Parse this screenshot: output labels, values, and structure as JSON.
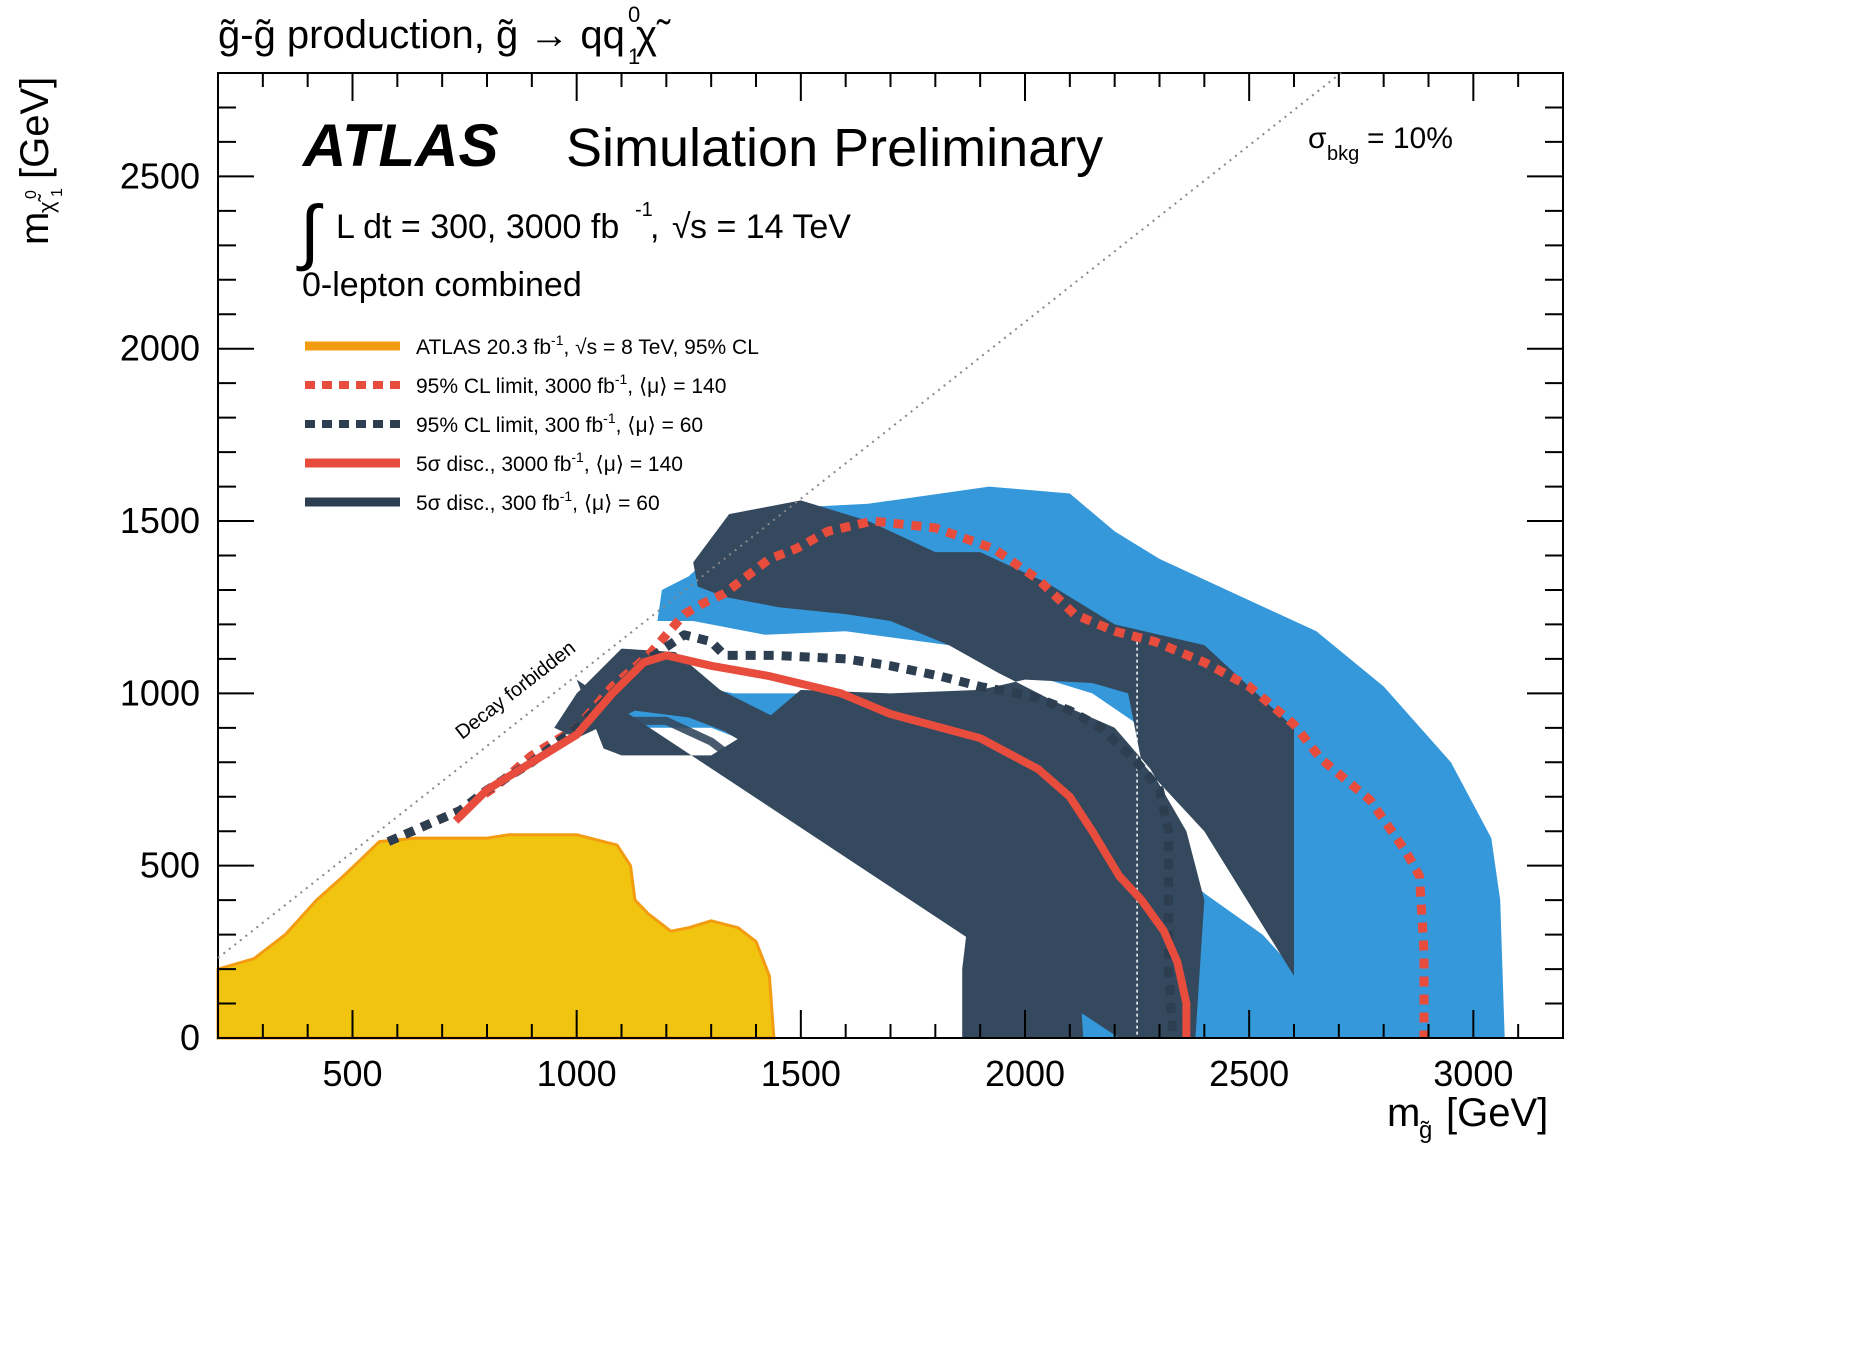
{
  "figure_title": "g̃-g̃ production, g̃ → qq χ̃",
  "figure_title_sup": "0",
  "figure_title_sub": "1",
  "experiment": "ATLAS",
  "status": "Simulation Preliminary",
  "lumi_text": "L dt = 300, 3000 fb",
  "lumi_sup": "-1",
  "energy_text": "s = 14 TeV",
  "channel": "0-lepton combined",
  "sigma_bkg_symbol": "σ",
  "sigma_bkg_sub": "bkg",
  "sigma_bkg_value": " = 10%",
  "diagonal_label": "Decay forbidden",
  "legend": [
    {
      "text": "ATLAS 20.3 fb",
      "sup": "-1",
      "rest": ", √s = 8 TeV, 95% CL",
      "color": "#F39C12",
      "style": "solid"
    },
    {
      "text": "95% CL limit, 3000 fb",
      "sup": "-1",
      "rest": ", ⟨μ⟩ = 140",
      "color": "#E74C3C",
      "style": "dotted"
    },
    {
      "text": "95% CL limit, 300 fb",
      "sup": "-1",
      "rest": ", ⟨μ⟩ = 60",
      "color": "#2C3E50",
      "style": "dotted"
    },
    {
      "text": "5σ disc., 3000 fb",
      "sup": "-1",
      "rest": ", ⟨μ⟩ = 140",
      "color": "#E74C3C",
      "style": "solid"
    },
    {
      "text": "5σ disc., 300 fb",
      "sup": "-1",
      "rest": ", ⟨μ⟩ = 60",
      "color": "#2C3E50",
      "style": "solid"
    }
  ],
  "chart_data": {
    "type": "area",
    "xlabel": "m",
    "xlabel_sub": "g̃",
    "xlabel_unit": "[GeV]",
    "ylabel": "m",
    "ylabel_sub": "χ̃",
    "ylabel_sub2": "0",
    "ylabel_sub3": "1",
    "ylabel_unit": "[GeV]",
    "xlim": [
      200,
      3200
    ],
    "ylim": [
      0,
      2800
    ],
    "x_ticks": [
      500,
      1000,
      1500,
      2000,
      2500,
      3000
    ],
    "y_ticks": [
      0,
      500,
      1000,
      1500,
      2000,
      2500
    ],
    "colors": {
      "light_blue": "#3498DB",
      "dark_blue": "#34495E",
      "orange_fill": "#F1C40F",
      "orange_line": "#F39C12",
      "red": "#E74C3C",
      "navy": "#2C3E50",
      "diagonal": "#888888"
    },
    "series": [
      {
        "name": "ATLAS 20.3 fb-1, √s = 8 TeV, 95% CL",
        "kind": "filled-region",
        "points": [
          [
            200,
            0
          ],
          [
            200,
            200
          ],
          [
            280,
            230
          ],
          [
            350,
            300
          ],
          [
            420,
            400
          ],
          [
            480,
            470
          ],
          [
            520,
            520
          ],
          [
            560,
            570
          ],
          [
            640,
            580
          ],
          [
            800,
            580
          ],
          [
            850,
            590
          ],
          [
            1000,
            590
          ],
          [
            1090,
            560
          ],
          [
            1120,
            500
          ],
          [
            1130,
            400
          ],
          [
            1160,
            360
          ],
          [
            1210,
            310
          ],
          [
            1250,
            320
          ],
          [
            1300,
            340
          ],
          [
            1360,
            320
          ],
          [
            1400,
            280
          ],
          [
            1430,
            180
          ],
          [
            1440,
            0
          ]
        ]
      },
      {
        "name": "5σ disc., 300 fb-1, ⟨μ⟩ = 60 band",
        "kind": "band",
        "points": [
          [
            1860,
            0
          ],
          [
            2130,
            0
          ],
          [
            2120,
            200
          ],
          [
            2060,
            400
          ],
          [
            1980,
            570
          ],
          [
            1880,
            650
          ],
          [
            1700,
            760
          ],
          [
            1520,
            880
          ],
          [
            1320,
            1010
          ],
          [
            1220,
            1120
          ],
          [
            1100,
            1130
          ],
          [
            1000,
            1000
          ],
          [
            950,
            900
          ],
          [
            1000,
            870
          ],
          [
            1130,
            950
          ],
          [
            1250,
            930
          ],
          [
            1330,
            890
          ],
          [
            1420,
            820
          ],
          [
            1600,
            740
          ],
          [
            1720,
            700
          ],
          [
            1820,
            620
          ],
          [
            1880,
            420
          ],
          [
            1860,
            200
          ]
        ]
      },
      {
        "name": "5σ disc., 300 fb-1, ⟨μ⟩ = 60",
        "kind": "line",
        "points": [
          [
            970,
            890
          ],
          [
            1050,
            920
          ],
          [
            1200,
            920
          ],
          [
            1300,
            860
          ],
          [
            1360,
            800
          ],
          [
            1400,
            760
          ],
          [
            1470,
            740
          ],
          [
            1550,
            700
          ],
          [
            1700,
            650
          ],
          [
            1800,
            600
          ],
          [
            1900,
            470
          ],
          [
            1960,
            350
          ],
          [
            2020,
            190
          ],
          [
            2040,
            0
          ]
        ]
      },
      {
        "name": "5σ disc., 3000 fb-1 band",
        "kind": "band",
        "points": [
          [
            2210,
            0
          ],
          [
            2380,
            0
          ],
          [
            2400,
            400
          ],
          [
            2360,
            600
          ],
          [
            2280,
            780
          ],
          [
            2200,
            900
          ],
          [
            2060,
            980
          ],
          [
            1940,
            1060
          ],
          [
            1830,
            1140
          ],
          [
            1700,
            1210
          ],
          [
            1600,
            1230
          ],
          [
            1450,
            1250
          ],
          [
            1330,
            1280
          ],
          [
            1270,
            1310
          ],
          [
            1260,
            1380
          ],
          [
            1340,
            1520
          ],
          [
            1500,
            1560
          ],
          [
            1650,
            1500
          ],
          [
            1800,
            1410
          ],
          [
            1900,
            1410
          ],
          [
            2050,
            1320
          ],
          [
            2200,
            1200
          ],
          [
            2400,
            1140
          ],
          [
            2600,
            900
          ],
          [
            2600,
            180
          ],
          [
            2400,
            600
          ],
          [
            2300,
            740
          ],
          [
            2260,
            800
          ],
          [
            2230,
            1000
          ],
          [
            2150,
            1030
          ],
          [
            2000,
            1040
          ],
          [
            1900,
            1010
          ],
          [
            1700,
            1000
          ],
          [
            1500,
            1010
          ],
          [
            1400,
            900
          ],
          [
            1300,
            820
          ],
          [
            1100,
            820
          ],
          [
            1060,
            840
          ],
          [
            1000,
            1040
          ]
        ]
      },
      {
        "name": "Light blue band",
        "kind": "band",
        "points": [
          [
            2130,
            0
          ],
          [
            3070,
            0
          ],
          [
            3060,
            400
          ],
          [
            3040,
            580
          ],
          [
            2950,
            800
          ],
          [
            2800,
            1020
          ],
          [
            2650,
            1180
          ],
          [
            2450,
            1300
          ],
          [
            2300,
            1390
          ],
          [
            2200,
            1470
          ],
          [
            2100,
            1580
          ],
          [
            1920,
            1600
          ],
          [
            1650,
            1550
          ],
          [
            1500,
            1540
          ],
          [
            1430,
            1440
          ],
          [
            1300,
            1400
          ],
          [
            1250,
            1340
          ],
          [
            1190,
            1300
          ],
          [
            1180,
            1210
          ],
          [
            1260,
            1210
          ],
          [
            1420,
            1170
          ],
          [
            1600,
            1180
          ],
          [
            1830,
            1140
          ],
          [
            2000,
            1060
          ],
          [
            2150,
            1000
          ],
          [
            2240,
            920
          ],
          [
            2330,
            820
          ],
          [
            2420,
            700
          ],
          [
            2500,
            560
          ],
          [
            2600,
            200
          ],
          [
            2530,
            300
          ],
          [
            2400,
            420
          ],
          [
            2330,
            500
          ],
          [
            2270,
            700
          ],
          [
            2200,
            780
          ],
          [
            2050,
            880
          ],
          [
            1900,
            920
          ],
          [
            1700,
            950
          ],
          [
            1500,
            1000
          ],
          [
            1350,
            1000
          ],
          [
            1150,
            1050
          ],
          [
            1050,
            1000
          ],
          [
            980,
            900
          ],
          [
            1100,
            900
          ],
          [
            1300,
            900
          ],
          [
            1500,
            800
          ],
          [
            1700,
            780
          ],
          [
            1800,
            720
          ],
          [
            1950,
            600
          ],
          [
            2050,
            500
          ],
          [
            2100,
            300
          ],
          [
            2120,
            100
          ]
        ]
      },
      {
        "name": "95% CL limit, 3000 fb-1, ⟨μ⟩ = 140",
        "kind": "dotted-line",
        "points": [
          [
            580,
            570
          ],
          [
            740,
            660
          ],
          [
            820,
            730
          ],
          [
            900,
            820
          ],
          [
            1000,
            900
          ],
          [
            1080,
            1020
          ],
          [
            1160,
            1110
          ],
          [
            1240,
            1230
          ],
          [
            1280,
            1260
          ],
          [
            1330,
            1290
          ],
          [
            1430,
            1390
          ],
          [
            1490,
            1420
          ],
          [
            1560,
            1470
          ],
          [
            1660,
            1500
          ],
          [
            1800,
            1480
          ],
          [
            1930,
            1420
          ],
          [
            2030,
            1330
          ],
          [
            2110,
            1230
          ],
          [
            2200,
            1180
          ],
          [
            2290,
            1150
          ],
          [
            2400,
            1090
          ],
          [
            2500,
            1020
          ],
          [
            2600,
            910
          ],
          [
            2660,
            810
          ],
          [
            2770,
            690
          ],
          [
            2850,
            540
          ],
          [
            2880,
            470
          ],
          [
            2890,
            250
          ],
          [
            2890,
            0
          ]
        ]
      },
      {
        "name": "95% CL limit, 300 fb-1, ⟨μ⟩ = 60",
        "kind": "dotted-line",
        "points": [
          [
            580,
            570
          ],
          [
            740,
            660
          ],
          [
            800,
            720
          ],
          [
            900,
            800
          ],
          [
            1000,
            900
          ],
          [
            1080,
            1000
          ],
          [
            1150,
            1090
          ],
          [
            1240,
            1170
          ],
          [
            1300,
            1150
          ],
          [
            1330,
            1110
          ],
          [
            1440,
            1110
          ],
          [
            1600,
            1100
          ],
          [
            1700,
            1080
          ],
          [
            1810,
            1050
          ],
          [
            1900,
            1020
          ],
          [
            2020,
            990
          ],
          [
            2100,
            950
          ],
          [
            2170,
            900
          ],
          [
            2250,
            800
          ],
          [
            2300,
            720
          ],
          [
            2320,
            600
          ],
          [
            2320,
            400
          ],
          [
            2320,
            200
          ],
          [
            2330,
            0
          ]
        ]
      },
      {
        "name": "5σ disc., 3000 fb-1, ⟨μ⟩ = 140",
        "kind": "line",
        "points": [
          [
            730,
            630
          ],
          [
            800,
            720
          ],
          [
            900,
            800
          ],
          [
            1000,
            880
          ],
          [
            1080,
            1000
          ],
          [
            1150,
            1090
          ],
          [
            1200,
            1110
          ],
          [
            1300,
            1080
          ],
          [
            1430,
            1050
          ],
          [
            1590,
            1000
          ],
          [
            1700,
            940
          ],
          [
            1900,
            870
          ],
          [
            2030,
            780
          ],
          [
            2100,
            700
          ],
          [
            2150,
            600
          ],
          [
            2210,
            470
          ],
          [
            2260,
            400
          ],
          [
            2310,
            310
          ],
          [
            2340,
            220
          ],
          [
            2360,
            100
          ],
          [
            2360,
            0
          ]
        ]
      }
    ],
    "annotations": [
      {
        "text": "Decay forbidden",
        "near": [
          950,
          990
        ]
      },
      {
        "text": "σbkg = 10%",
        "near": [
          2750,
          2500
        ]
      }
    ],
    "vertical_reference_x": 2250
  }
}
